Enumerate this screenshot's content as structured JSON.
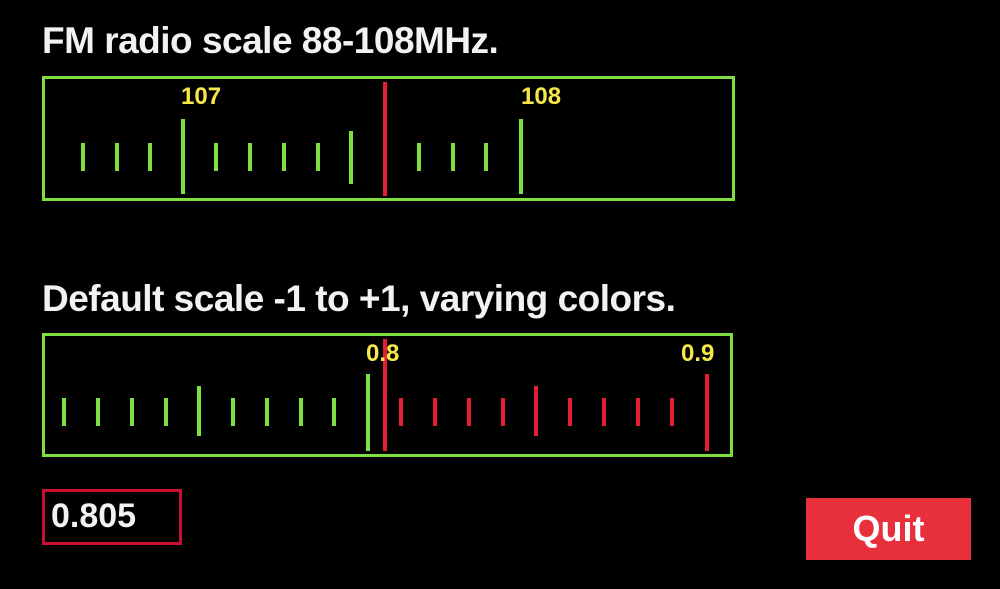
{
  "fm_scale": {
    "title": "FM radio scale 88-108MHz.",
    "labels": [
      "107",
      "108"
    ],
    "frame_color": "#7ee040",
    "tick_color": "#7ee040",
    "pointer_color": "#e61e32",
    "label_color": "#f7e84a"
  },
  "default_scale": {
    "title": "Default scale -1 to +1, varying colors.",
    "labels": [
      "0.8",
      "0.9"
    ],
    "low_color": "#7ee040",
    "high_color": "#e61e32",
    "label_color": "#f7e84a"
  },
  "readout": {
    "value": "0.805",
    "border_color": "#c8102e"
  },
  "quit_button": {
    "label": "Quit",
    "color": "#e8303c"
  }
}
